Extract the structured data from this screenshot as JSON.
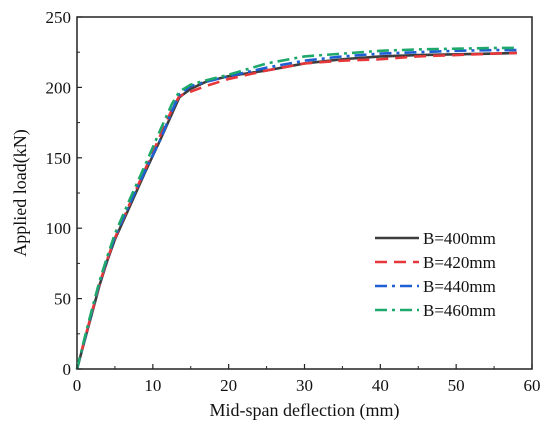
{
  "chart_data": {
    "type": "line",
    "xlabel": "Mid-span deflection (mm)",
    "ylabel": "Applied load(kN)",
    "xlim": [
      0,
      60
    ],
    "ylim": [
      0,
      250
    ],
    "x_ticks": [
      "0",
      "10",
      "20",
      "30",
      "40",
      "50",
      "60"
    ],
    "y_ticks": [
      "0",
      "50",
      "100",
      "150",
      "200",
      "250"
    ],
    "grid": false,
    "legend_position": "right-center",
    "series": [
      {
        "name": "B=400mm",
        "color": "#3d3d3d",
        "dash": "solid",
        "points": [
          [
            0,
            0
          ],
          [
            1,
            20
          ],
          [
            2,
            40
          ],
          [
            3,
            60
          ],
          [
            4,
            77
          ],
          [
            5,
            92
          ],
          [
            7,
            116
          ],
          [
            9,
            140
          ],
          [
            11,
            163
          ],
          [
            12.5,
            181
          ],
          [
            13.5,
            193
          ],
          [
            15,
            199
          ],
          [
            17,
            204
          ],
          [
            20,
            208
          ],
          [
            25,
            212
          ],
          [
            30,
            217
          ],
          [
            35,
            220
          ],
          [
            40,
            222
          ],
          [
            45,
            223
          ],
          [
            50,
            223.5
          ],
          [
            55,
            224
          ],
          [
            58,
            224.5
          ]
        ]
      },
      {
        "name": "B=420mm",
        "color": "#e8373a",
        "dash": "dash",
        "points": [
          [
            0,
            0
          ],
          [
            1,
            21
          ],
          [
            2,
            41
          ],
          [
            3,
            61
          ],
          [
            4,
            78
          ],
          [
            5,
            93
          ],
          [
            7,
            118
          ],
          [
            9,
            142
          ],
          [
            11,
            166
          ],
          [
            12.5,
            184
          ],
          [
            13.5,
            194
          ],
          [
            15,
            197
          ],
          [
            17,
            201
          ],
          [
            20,
            206
          ],
          [
            25,
            212
          ],
          [
            30,
            217
          ],
          [
            35,
            219
          ],
          [
            40,
            220
          ],
          [
            45,
            222
          ],
          [
            50,
            223
          ],
          [
            55,
            224
          ],
          [
            58,
            224.5
          ]
        ]
      },
      {
        "name": "B=440mm",
        "color": "#1f5fd6",
        "dash": "dashdot",
        "points": [
          [
            0,
            0
          ],
          [
            1,
            21
          ],
          [
            2,
            42
          ],
          [
            3,
            62
          ],
          [
            4,
            79
          ],
          [
            5,
            94
          ],
          [
            7,
            118
          ],
          [
            9,
            141
          ],
          [
            10,
            152
          ],
          [
            11,
            163
          ],
          [
            12.5,
            183
          ],
          [
            13.5,
            195
          ],
          [
            15,
            201
          ],
          [
            17,
            204
          ],
          [
            20,
            208
          ],
          [
            25,
            214
          ],
          [
            30,
            219
          ],
          [
            35,
            222
          ],
          [
            40,
            224
          ],
          [
            45,
            225
          ],
          [
            50,
            226
          ],
          [
            55,
            226.5
          ],
          [
            58,
            226.5
          ]
        ]
      },
      {
        "name": "B=460mm",
        "color": "#1fa86b",
        "dash": "dashdot",
        "points": [
          [
            0,
            0
          ],
          [
            1,
            22
          ],
          [
            2,
            43
          ],
          [
            3,
            63
          ],
          [
            4,
            80
          ],
          [
            5,
            96
          ],
          [
            7,
            121
          ],
          [
            9,
            145
          ],
          [
            11,
            170
          ],
          [
            12.5,
            188
          ],
          [
            13.5,
            197
          ],
          [
            15,
            202
          ],
          [
            17,
            205
          ],
          [
            20,
            209
          ],
          [
            25,
            217
          ],
          [
            30,
            222
          ],
          [
            35,
            224
          ],
          [
            40,
            226
          ],
          [
            45,
            227
          ],
          [
            50,
            227.5
          ],
          [
            55,
            228
          ],
          [
            58,
            228
          ]
        ]
      }
    ]
  }
}
